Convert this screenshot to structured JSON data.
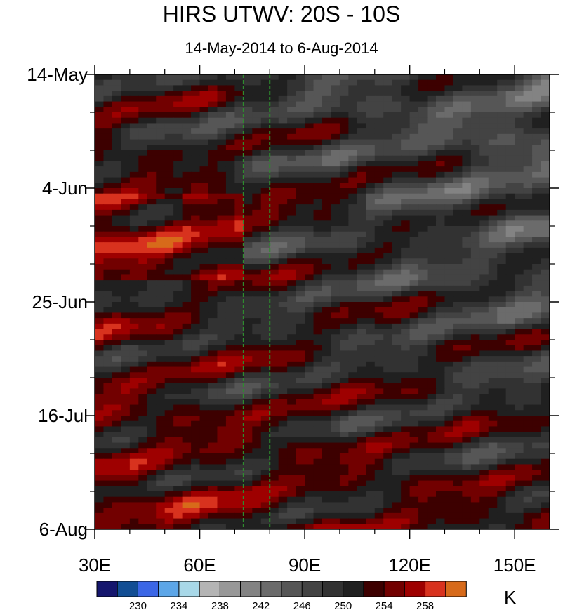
{
  "chart_data": {
    "type": "heatmap",
    "title": "HIRS UTWV: 20S - 10S",
    "subtitle": "14-May-2014 to 6-Aug-2014",
    "x_ticks": [
      {
        "value": 30,
        "label": "30E"
      },
      {
        "value": 60,
        "label": "60E"
      },
      {
        "value": 90,
        "label": "90E"
      },
      {
        "value": 120,
        "label": "120E"
      },
      {
        "value": 150,
        "label": "150E"
      }
    ],
    "xlim": [
      30,
      160
    ],
    "y_ticks": [
      {
        "day": 0,
        "label": "14-May"
      },
      {
        "day": 21,
        "label": "4-Jun"
      },
      {
        "day": 42,
        "label": "25-Jun"
      },
      {
        "day": 63,
        "label": "16-Jul"
      },
      {
        "day": 84,
        "label": "6-Aug"
      }
    ],
    "ylim_days": [
      0,
      84
    ],
    "y_reversed": true,
    "reference_lines_lon": [
      72.5,
      80
    ],
    "reference_line_color": "#2e8b2e",
    "colorbar": {
      "unit": "K",
      "levels": [
        228,
        230,
        232,
        234,
        236,
        238,
        240,
        242,
        244,
        246,
        248,
        250,
        252,
        254,
        256,
        258,
        260
      ],
      "labels": [
        {
          "value": 230,
          "label": "230"
        },
        {
          "value": 234,
          "label": "234"
        },
        {
          "value": 238,
          "label": "238"
        },
        {
          "value": 242,
          "label": "242"
        },
        {
          "value": 246,
          "label": "246"
        },
        {
          "value": 250,
          "label": "250"
        },
        {
          "value": 254,
          "label": "254"
        },
        {
          "value": 258,
          "label": "258"
        }
      ],
      "colors": [
        "#15166e",
        "#124e94",
        "#3b66e6",
        "#5ca6e8",
        "#a8d8e8",
        "#b4b4b4",
        "#989898",
        "#838383",
        "#6b6b6b",
        "#565656",
        "#434343",
        "#323232",
        "#202020",
        "#3d0000",
        "#720000",
        "#9e0000",
        "#d8321e",
        "#d76a1a"
      ]
    }
  }
}
